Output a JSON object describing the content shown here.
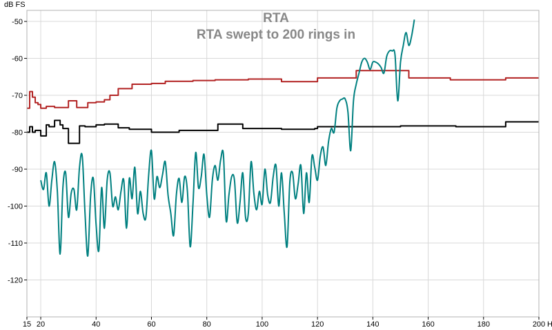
{
  "chart_data": {
    "type": "line",
    "title": "RTA",
    "subtitle": "RTA swept to 200 rings in",
    "ylabel": "dB FS",
    "xunit": "Hz",
    "xlim": [
      15,
      200
    ],
    "ylim": [
      -130,
      -47
    ],
    "x_ticks": [
      15,
      20,
      40,
      60,
      80,
      100,
      120,
      140,
      160,
      180,
      200
    ],
    "y_ticks": [
      -50,
      -60,
      -70,
      -80,
      -90,
      -100,
      -110,
      -120
    ],
    "grid": true,
    "colors": {
      "background": "#ffffff",
      "grid": "#d8d8d8",
      "frame": "#b0b0b0",
      "title": "#888888"
    },
    "series": [
      {
        "color": "#b22222",
        "shape": "step",
        "x": [
          15,
          16,
          17,
          18,
          19,
          20,
          22,
          25,
          28,
          30,
          33,
          35,
          37,
          40,
          43,
          45,
          48,
          53,
          60,
          65,
          75,
          83,
          95,
          107,
          120,
          134,
          149,
          153,
          168,
          188,
          200
        ],
        "y": [
          -73.5,
          -69.0,
          -70.5,
          -72.0,
          -72.5,
          -73.5,
          -73.0,
          -73.3,
          -73.3,
          -71.5,
          -73.3,
          -73.3,
          -72.0,
          -71.8,
          -71.2,
          -70.0,
          -68.2,
          -67.0,
          -66.8,
          -66.2,
          -66.0,
          -65.8,
          -65.6,
          -66.3,
          -65.3,
          -63.3,
          -63.3,
          -65.3,
          -65.8,
          -65.3,
          -65.3
        ]
      },
      {
        "color": "#000000",
        "shape": "step",
        "x": [
          15,
          16,
          17,
          18,
          20,
          22,
          23,
          25,
          27,
          28,
          30,
          34,
          36,
          40,
          43,
          48,
          52,
          60,
          70,
          84,
          93,
          107,
          119,
          120,
          150,
          170,
          188,
          200
        ],
        "y": [
          -80.0,
          -78.5,
          -80.0,
          -79.5,
          -81.0,
          -78.0,
          -78.5,
          -76.8,
          -78.0,
          -79.0,
          -83.0,
          -78.3,
          -78.5,
          -78.0,
          -77.8,
          -78.8,
          -79.2,
          -80.0,
          -79.5,
          -77.8,
          -79.0,
          -79.2,
          -79.0,
          -78.5,
          -78.3,
          -78.5,
          -77.2,
          -77.2
        ]
      },
      {
        "color": "#008080",
        "shape": "smooth",
        "x": [
          20,
          21,
          22,
          23,
          24,
          25,
          26,
          27,
          28,
          29,
          30,
          31,
          32,
          33,
          34,
          35,
          36,
          37,
          38,
          39,
          40,
          41,
          42,
          43,
          44,
          45,
          46,
          47,
          48,
          49,
          50,
          51,
          52,
          53,
          54,
          55,
          56,
          57,
          58,
          59,
          60,
          61,
          62,
          63,
          64,
          65,
          66,
          67,
          68,
          69,
          70,
          71,
          72,
          73,
          74,
          75,
          76,
          77,
          78,
          79,
          80,
          81,
          82,
          83,
          84,
          85,
          86,
          87,
          88,
          89,
          90,
          91,
          92,
          93,
          94,
          95,
          96,
          97,
          98,
          99,
          100,
          101,
          102,
          103,
          104,
          105,
          106,
          107,
          108,
          109,
          110,
          111,
          112,
          113,
          114,
          115,
          116,
          117,
          118,
          119,
          120,
          121,
          122,
          123,
          124,
          125,
          126,
          127,
          128,
          129,
          130,
          131,
          132,
          133,
          134,
          135,
          136,
          137,
          138,
          139,
          140,
          141,
          142,
          143,
          144,
          145,
          146,
          147,
          148,
          149,
          150,
          151,
          152,
          153,
          154,
          155
        ],
        "y": [
          -93,
          -95.5,
          -91,
          -100,
          -93,
          -88,
          -96,
          -113,
          -95,
          -91,
          -103,
          -96.5,
          -95.5,
          -101,
          -89.5,
          -86.5,
          -102,
          -113.5,
          -97.5,
          -92.5,
          -105,
          -112,
          -95,
          -106,
          -93,
          -91,
          -100,
          -97.5,
          -101,
          -96,
          -93,
          -106,
          -92.5,
          -98,
          -89.5,
          -102,
          -96,
          -102,
          -103,
          -91.5,
          -85,
          -98,
          -92,
          -95,
          -91.5,
          -88,
          -97,
          -102,
          -108,
          -97,
          -92.5,
          -99,
          -92,
          -96,
          -111,
          -99.5,
          -85.5,
          -95,
          -92,
          -86,
          -97,
          -103,
          -93,
          -89,
          -93,
          -87.5,
          -86,
          -104,
          -97,
          -92,
          -93,
          -104.5,
          -99,
          -91,
          -103,
          -102,
          -88,
          -96.5,
          -101,
          -96,
          -99.5,
          -90,
          -97,
          -99,
          -92,
          -89,
          -100,
          -91,
          -102,
          -111,
          -93.5,
          -91,
          -98,
          -94,
          -89,
          -102,
          -91,
          -99,
          -86.5,
          -89.5,
          -93,
          -86.5,
          -84,
          -89,
          -82.5,
          -79,
          -80,
          -73.5,
          -71.5,
          -71,
          -71,
          -74.5,
          -85,
          -71.5,
          -67,
          -64,
          -61,
          -60,
          -61,
          -63,
          -61,
          -61,
          -61.5,
          -62.5,
          -64,
          -59.5,
          -58,
          -58,
          -59,
          -71.5,
          -61,
          -56.5,
          -53,
          -56.5,
          -54,
          -49.5
        ]
      }
    ]
  }
}
